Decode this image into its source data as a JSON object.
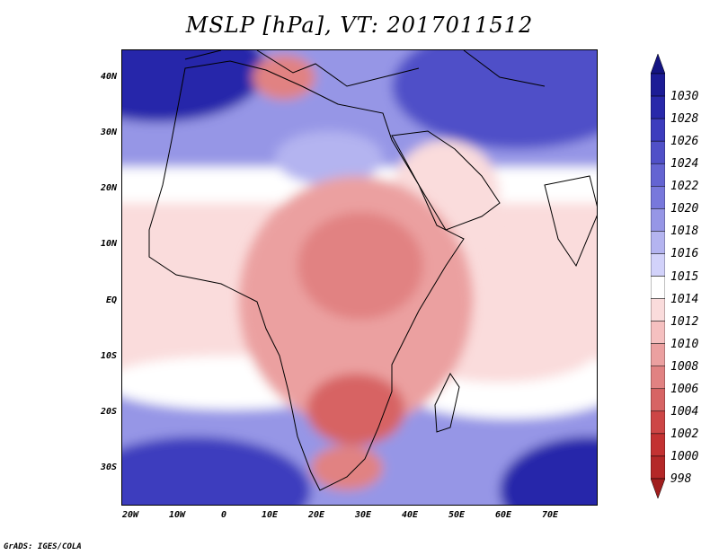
{
  "title": "MSLP [hPa], VT: 2017011512",
  "credit": "GrADS: IGES/COLA",
  "lat_labels": [
    "40N",
    "30N",
    "20N",
    "10N",
    "EQ",
    "10S",
    "20S",
    "30S"
  ],
  "lon_labels": [
    "20W",
    "10W",
    "0",
    "10E",
    "20E",
    "30E",
    "40E",
    "50E",
    "60E",
    "70E"
  ],
  "colorbar": {
    "labels": [
      "1030",
      "1028",
      "1026",
      "1024",
      "1022",
      "1020",
      "1018",
      "1016",
      "1015",
      "1014",
      "1012",
      "1010",
      "1008",
      "1006",
      "1004",
      "1002",
      "1000",
      "998"
    ],
    "colors": [
      "#1c1c96",
      "#2828aa",
      "#3c3cbe",
      "#5050c8",
      "#6464d2",
      "#7878dc",
      "#9696e6",
      "#b4b4f0",
      "#d2d2fa",
      "#ffffff",
      "#fadcdc",
      "#f5c0c0",
      "#eba0a0",
      "#e18282",
      "#d76464",
      "#cd4646",
      "#c33232",
      "#b42828"
    ],
    "top_color": "#141482",
    "bottom_color": "#a01e1e"
  },
  "colors": {
    "high": "#1c1c96",
    "mid_high": "#7878dc",
    "neutral": "#ffffff",
    "mid_low": "#f5c0c0",
    "low": "#cd4646",
    "coast": "#000000"
  }
}
